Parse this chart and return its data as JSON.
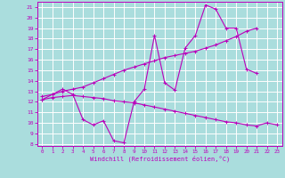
{
  "title": "",
  "xlabel": "Windchill (Refroidissement éolien,°C)",
  "x": [
    0,
    1,
    2,
    3,
    4,
    5,
    6,
    7,
    8,
    9,
    10,
    11,
    12,
    13,
    14,
    15,
    16,
    17,
    18,
    19,
    20,
    21,
    22,
    23
  ],
  "line1": [
    12.5,
    12.7,
    13.2,
    12.7,
    10.3,
    9.8,
    10.2,
    8.3,
    8.1,
    12.0,
    13.2,
    18.3,
    13.8,
    13.1,
    17.1,
    18.3,
    21.2,
    20.8,
    19.0,
    19.0,
    15.1,
    14.7,
    null,
    null
  ],
  "line2": [
    12.2,
    12.7,
    13.0,
    13.2,
    13.4,
    13.8,
    14.2,
    14.6,
    15.0,
    15.3,
    15.6,
    15.9,
    16.2,
    16.4,
    16.6,
    16.8,
    17.1,
    17.4,
    17.8,
    18.2,
    18.7,
    19.0,
    null,
    null
  ],
  "line3": [
    12.2,
    12.4,
    12.5,
    12.6,
    12.5,
    12.4,
    12.3,
    12.1,
    12.0,
    11.9,
    11.7,
    11.5,
    11.3,
    11.1,
    10.9,
    10.7,
    10.5,
    10.3,
    10.1,
    10.0,
    9.8,
    9.7,
    10.0,
    9.8
  ],
  "ylim": [
    7.8,
    21.5
  ],
  "xlim": [
    -0.5,
    23.5
  ],
  "yticks": [
    8,
    9,
    10,
    11,
    12,
    13,
    14,
    15,
    16,
    17,
    18,
    19,
    20,
    21
  ],
  "xticks": [
    0,
    1,
    2,
    3,
    4,
    5,
    6,
    7,
    8,
    9,
    10,
    11,
    12,
    13,
    14,
    15,
    16,
    17,
    18,
    19,
    20,
    21,
    22,
    23
  ],
  "line_color": "#bb00bb",
  "bg_color": "#aadddd",
  "grid_color": "#ffffff",
  "marker": "+",
  "markersize": 3,
  "linewidth": 0.8
}
